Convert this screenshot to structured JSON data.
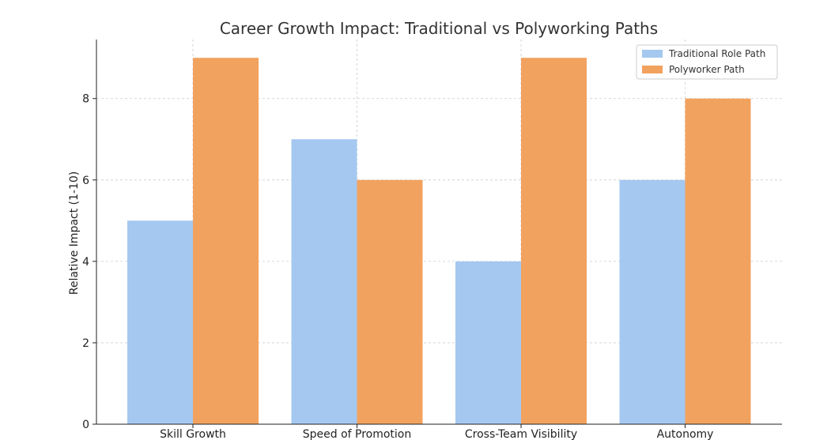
{
  "chart_data": {
    "type": "bar",
    "title": "Career Growth Impact: Traditional vs Polyworking Paths",
    "xlabel": "",
    "ylabel": "Relative Impact (1-10)",
    "categories": [
      "Skill Growth",
      "Speed of Promotion",
      "Cross-Team Visibility",
      "Autonomy"
    ],
    "series": [
      {
        "name": "Traditional Role Path",
        "values": [
          5,
          7,
          4,
          6
        ],
        "color": "#a4c8f0"
      },
      {
        "name": "Polyworker Path",
        "values": [
          9,
          6,
          9,
          8
        ],
        "color": "#f2a25f"
      }
    ],
    "ylim": [
      0,
      9.45
    ],
    "yticks": [
      0,
      2,
      4,
      6,
      8
    ],
    "grid": true,
    "legend_position": "top-right"
  }
}
